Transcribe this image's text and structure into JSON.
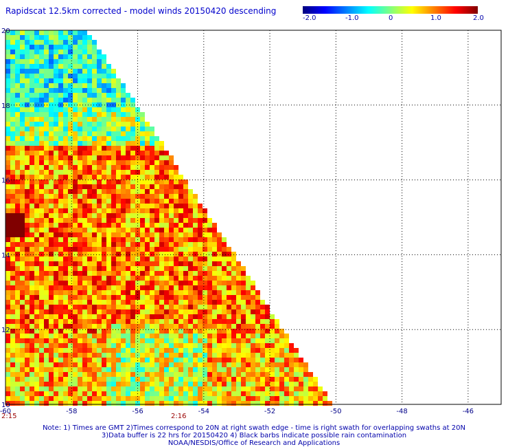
{
  "header": {
    "title": "Rapidscat 12.5km corrected - model winds 20150420 descending"
  },
  "colorbar": {
    "labels": [
      "-2.0",
      "-1.0",
      "0",
      "1.0",
      "2.0"
    ],
    "range": [
      -2.0,
      2.0
    ],
    "colors": [
      "#00007f",
      "#0000ff",
      "#0080ff",
      "#00ffff",
      "#80ff80",
      "#ffff00",
      "#ff8000",
      "#ff0000",
      "#800000"
    ]
  },
  "map": {
    "lon_range": [
      -60,
      -45
    ],
    "lat_range": [
      10,
      20
    ],
    "lon_ticks": [
      "-60",
      "-58",
      "-56",
      "-54",
      "-52",
      "-50",
      "-48",
      "-46"
    ],
    "lat_ticks": [
      "20",
      "18",
      "16",
      "14",
      "12",
      "10"
    ],
    "times": [
      "2:15",
      "2:16"
    ],
    "grid_lines": "dotted"
  },
  "footer": {
    "line1": "Note: 1) Times are GMT 2)Times correspond to 20N at right swath edge - time is right swath for overlapping swaths at 20N",
    "line2": "3)Data buffer is 22 hrs for 20150420 4) Black barbs indicate possible rain contamination",
    "line3": "NOAA/NESDIS/Office of Research and Applications"
  }
}
